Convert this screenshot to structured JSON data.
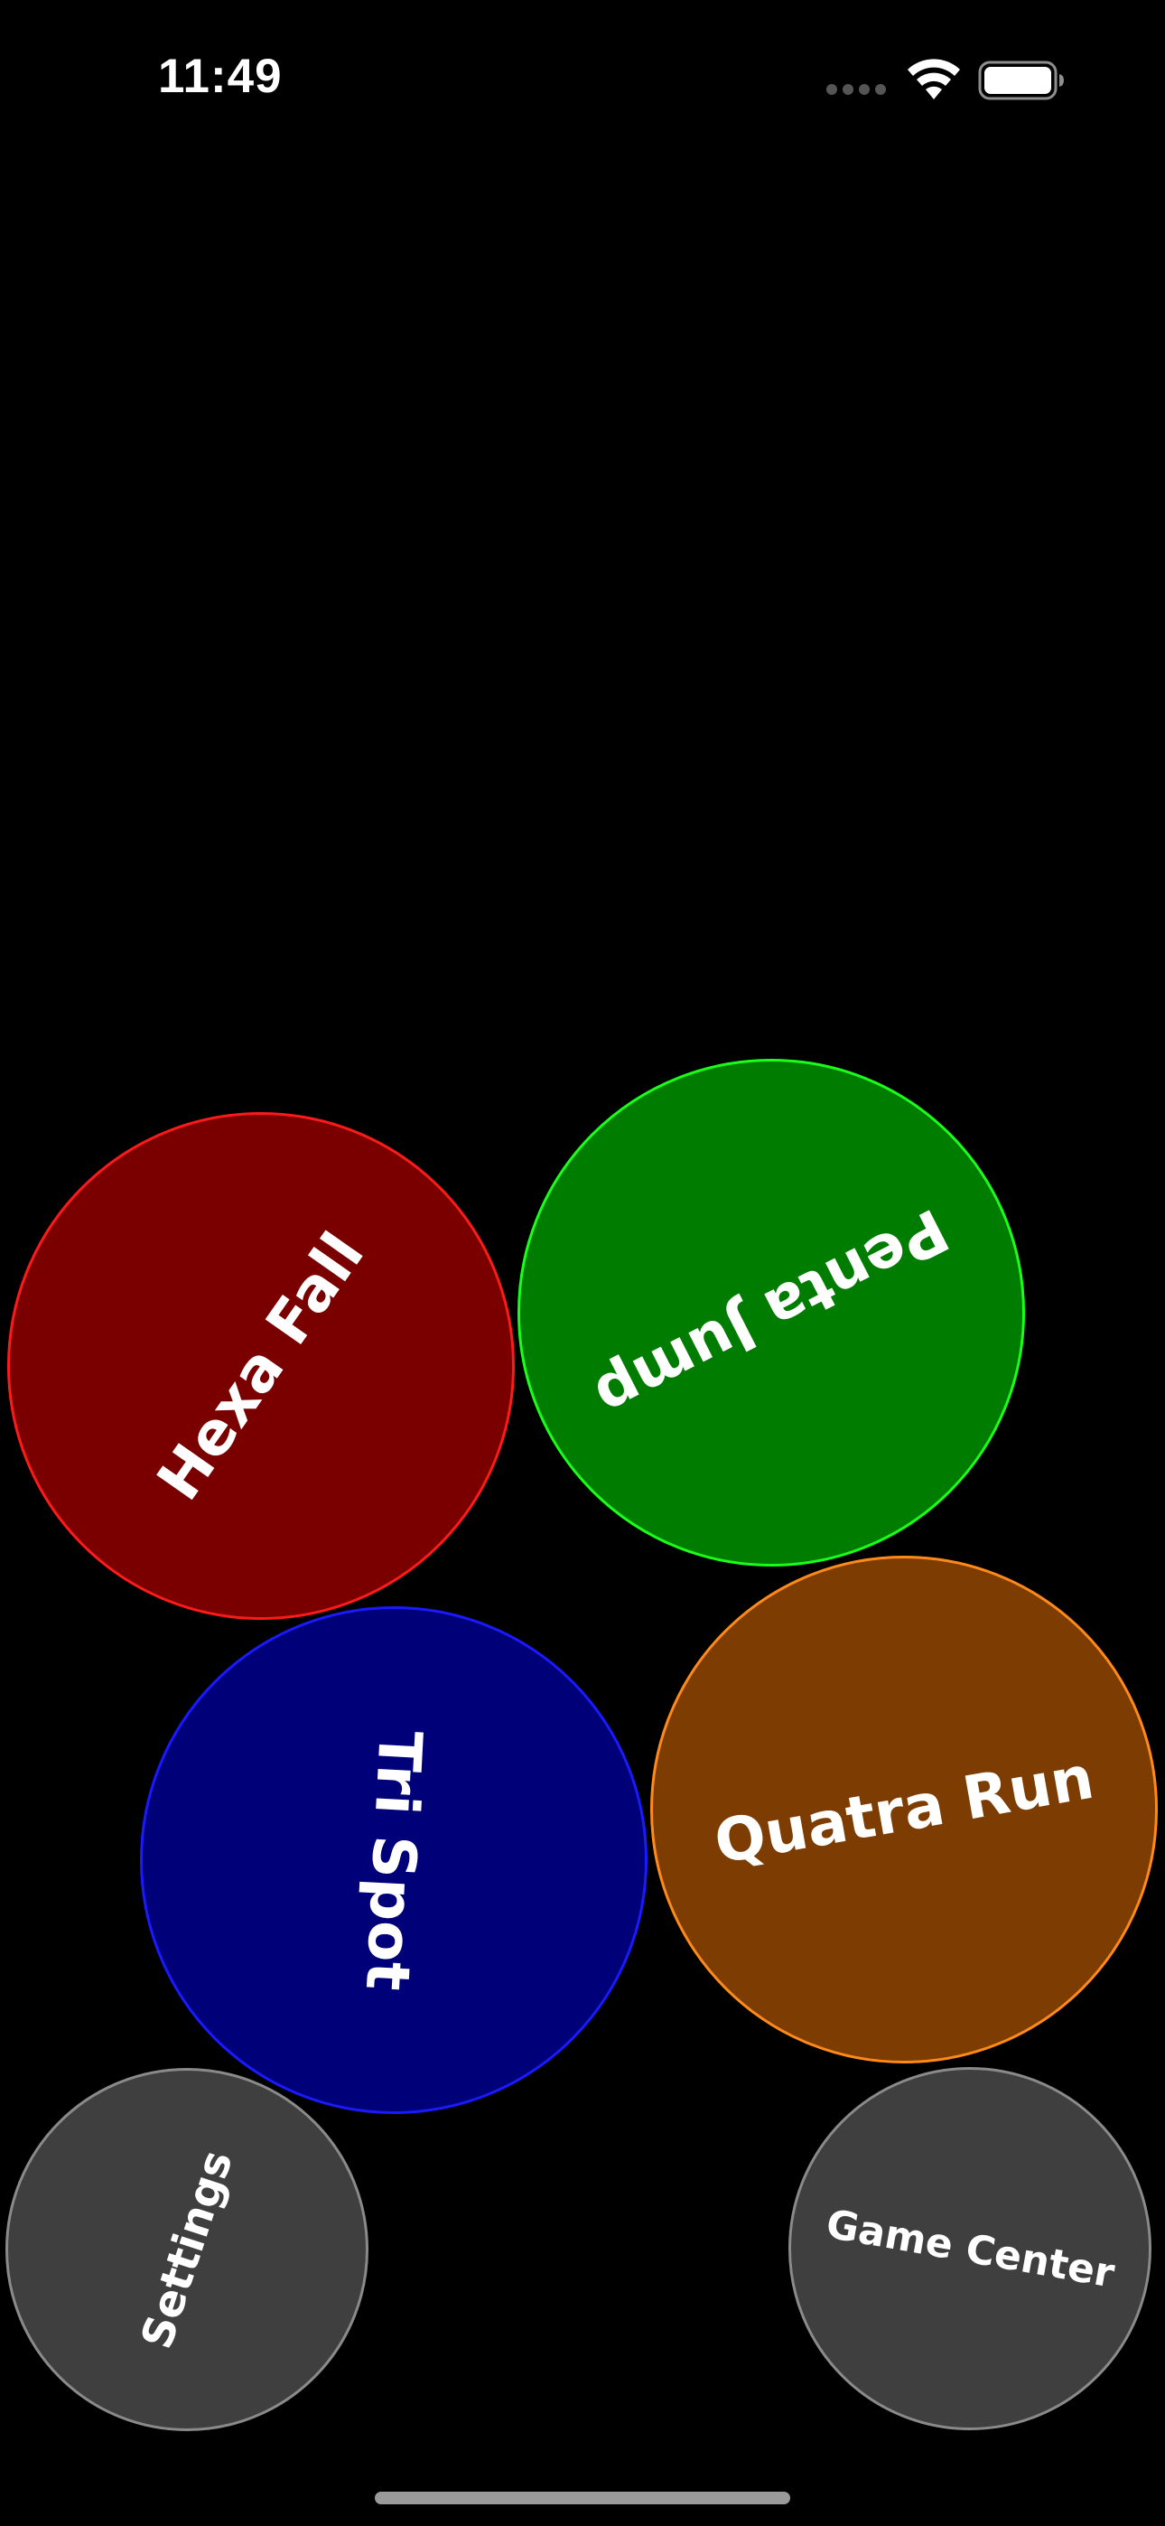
{
  "status_bar": {
    "time": "11:49",
    "icons": [
      "cellular-signal-icon",
      "wifi-icon",
      "battery-icon"
    ]
  },
  "menu": {
    "games": [
      {
        "id": "hexa",
        "label": "Hexa Fall",
        "fill": "#7a0000",
        "stroke": "#ff1a1a"
      },
      {
        "id": "penta",
        "label": "Penta Jump",
        "fill": "#007d00",
        "stroke": "#1aff1a"
      },
      {
        "id": "tri",
        "label": "Tri Spot",
        "fill": "#000079",
        "stroke": "#1a1aff"
      },
      {
        "id": "quatra",
        "label": "Quatra Run",
        "fill": "#7c3c02",
        "stroke": "#ff8a1a"
      }
    ],
    "settings_label": "Settings",
    "game_center_label": "Game Center"
  },
  "colors": {
    "background": "#000000",
    "utility_button_fill": "#3f3f3f",
    "utility_button_stroke": "#8a8a8a"
  }
}
